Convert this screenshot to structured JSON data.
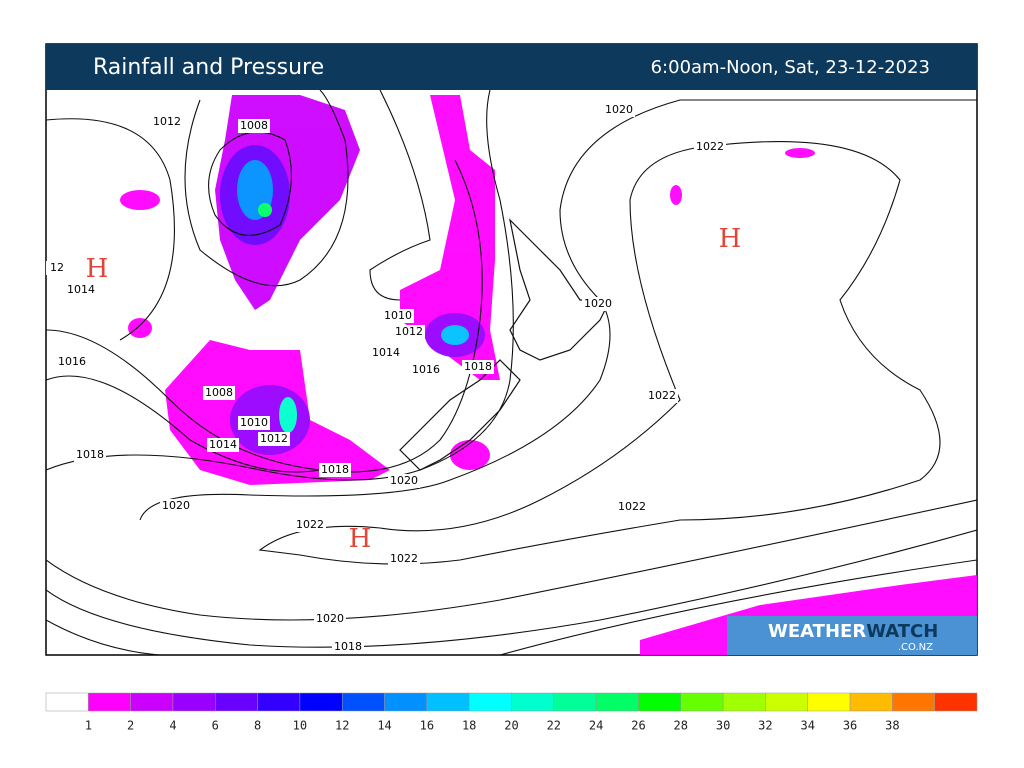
{
  "header": {
    "title": "Rainfall and Pressure",
    "time": "6:00am-Noon, Sat, 23-12-2023"
  },
  "isobar_labels": [
    "1012",
    "1008",
    "1020",
    "1022",
    "12",
    "1014",
    "1020",
    "1010",
    "1012",
    "1014",
    "1016",
    "1016",
    "1018",
    "1008",
    "1022",
    "1010",
    "1012",
    "1014",
    "1018",
    "1018",
    "1020",
    "1020",
    "1022",
    "1022",
    "1022",
    "1020",
    "1018"
  ],
  "highs": [
    "H",
    "H",
    "H"
  ],
  "legend": {
    "labels": [
      1,
      2,
      4,
      6,
      8,
      10,
      12,
      14,
      16,
      18,
      20,
      22,
      24,
      26,
      28,
      30,
      32,
      34,
      36,
      38
    ],
    "colors": [
      "#ffffff",
      "#ff00ff",
      "#cc00ff",
      "#9900ff",
      "#6a00ff",
      "#3300ff",
      "#0000ff",
      "#0050ff",
      "#0090ff",
      "#00c0ff",
      "#00ffff",
      "#00ffcc",
      "#00ff99",
      "#00ff66",
      "#00ff00",
      "#66ff00",
      "#a0ff00",
      "#ccff00",
      "#ffff00",
      "#ffbb00",
      "#ff7700",
      "#ff3300"
    ]
  },
  "logo": {
    "brand_a": "WEATHER",
    "brand_b": "WATCH",
    "domain": ".CO.NZ"
  }
}
